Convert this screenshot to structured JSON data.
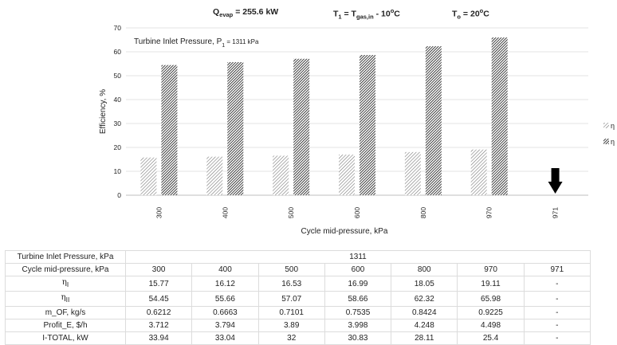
{
  "header": {
    "q_label": "Q",
    "q_sub": "evap",
    "q_value": " = 255.6 kW",
    "t1_label": "T",
    "t1_sub": "1",
    "t1_mid": " = T",
    "t1_sub2": "gas,in",
    "t1_value": " - 10",
    "t1_deg": "o",
    "t1_unit": "C",
    "to_label": "T",
    "to_sub": "o",
    "to_value": " = 20",
    "to_deg": "o",
    "to_unit": "C"
  },
  "chart_data": {
    "type": "bar",
    "annotation": "Turbine Inlet Pressure, P",
    "annotation_sub": "1",
    "annotation_value": " =  1311 kPa",
    "xlabel": "Cycle mid-pressure, kPa",
    "ylabel": "Efficiency, %",
    "ylim": [
      0,
      70
    ],
    "yticks": [
      0,
      10,
      20,
      30,
      40,
      50,
      60,
      70
    ],
    "grid": true,
    "legend_position": "right (partially cut off)",
    "legend_marker": "η",
    "categories": [
      "300",
      "400",
      "500",
      "600",
      "800",
      "970",
      "971"
    ],
    "series": [
      {
        "name": "η_I",
        "values": [
          15.77,
          16.12,
          16.53,
          16.99,
          18.05,
          19.11,
          null
        ],
        "pattern": "light-diagonal"
      },
      {
        "name": "η_II",
        "values": [
          54.45,
          55.66,
          57.07,
          58.66,
          62.32,
          65.98,
          null
        ],
        "pattern": "dense-diagonal"
      }
    ],
    "arrow_category": "971"
  },
  "table": {
    "rows": [
      {
        "label": "Turbine Inlet Pressure, kPa",
        "span_value": "1311"
      },
      {
        "label": "Cycle mid-pressure, kPa",
        "cells": [
          "300",
          "400",
          "500",
          "600",
          "800",
          "970",
          "971"
        ]
      },
      {
        "label": "η",
        "label_sub": "I",
        "cells": [
          "15.77",
          "16.12",
          "16.53",
          "16.99",
          "18.05",
          "19.11",
          "-"
        ]
      },
      {
        "label": "η",
        "label_sub": "II",
        "cells": [
          "54.45",
          "55.66",
          "57.07",
          "58.66",
          "62.32",
          "65.98",
          "-"
        ]
      },
      {
        "label": "m_OF, kg/s",
        "cells": [
          "0.6212",
          "0.6663",
          "0.7101",
          "0.7535",
          "0.8424",
          "0.9225",
          "-"
        ]
      },
      {
        "label": "Profit_E, $/h",
        "cells": [
          "3.712",
          "3.794",
          "3.89",
          "3.998",
          "4.248",
          "4.498",
          "-"
        ]
      },
      {
        "label": "I-TOTAL, kW",
        "cells": [
          "33.94",
          "33.04",
          "32",
          "30.83",
          "28.11",
          "25.4",
          "-"
        ]
      }
    ]
  }
}
